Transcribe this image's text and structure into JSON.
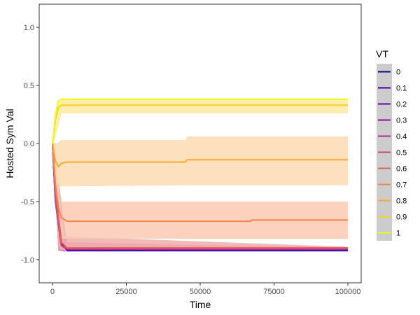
{
  "chart_data": {
    "type": "line",
    "title": "",
    "xlabel": "Time",
    "ylabel": "Hosted Sym Val",
    "xlim": [
      -4500,
      104500
    ],
    "ylim": [
      -1.2,
      1.2
    ],
    "x_ticks": [
      0,
      25000,
      50000,
      75000,
      100000
    ],
    "x_tick_labels": [
      "0",
      "25000",
      "50000",
      "75000",
      "100000"
    ],
    "y_ticks": [
      -1.0,
      -0.5,
      0.0,
      0.5,
      1.0
    ],
    "y_tick_labels": [
      "-1.0",
      "-0.5",
      "0.0",
      "0.5",
      "1.0"
    ],
    "grid": false,
    "legend": {
      "title": "VT",
      "placement": "right"
    },
    "series": [
      {
        "name": "0",
        "color": "#0d0887",
        "band_fill": "#7f7fd0",
        "points": [
          [
            0,
            0.0
          ],
          [
            1000,
            -0.4
          ],
          [
            3000,
            -0.85
          ],
          [
            5000,
            -0.92
          ],
          [
            100000,
            -0.92
          ]
        ],
        "band": [
          [
            0,
            -0.02,
            0.02
          ],
          [
            2000,
            -0.9,
            -0.3
          ],
          [
            5000,
            -0.93,
            -0.88
          ],
          [
            100000,
            -0.93,
            -0.91
          ]
        ]
      },
      {
        "name": "0.1",
        "color": "#41049d",
        "band_fill": "#8b6fd0",
        "points": [
          [
            0,
            0.0
          ],
          [
            1000,
            -0.45
          ],
          [
            3000,
            -0.86
          ],
          [
            5000,
            -0.92
          ],
          [
            100000,
            -0.92
          ]
        ],
        "band": [
          [
            0,
            -0.02,
            0.02
          ],
          [
            2000,
            -0.9,
            -0.35
          ],
          [
            5000,
            -0.93,
            -0.88
          ],
          [
            100000,
            -0.93,
            -0.91
          ]
        ]
      },
      {
        "name": "0.2",
        "color": "#6a00a8",
        "band_fill": "#a36fd6",
        "points": [
          [
            0,
            0.0
          ],
          [
            1000,
            -0.5
          ],
          [
            3000,
            -0.87
          ],
          [
            5000,
            -0.91
          ],
          [
            100000,
            -0.91
          ]
        ],
        "band": [
          [
            0,
            -0.02,
            0.02
          ],
          [
            2000,
            -0.92,
            -0.4
          ],
          [
            4000,
            -0.93,
            -0.84
          ],
          [
            5500,
            -0.92,
            -0.9
          ],
          [
            100000,
            -0.92,
            -0.9
          ]
        ]
      },
      {
        "name": "0.3",
        "color": "#8f0da4",
        "band_fill": "#c76fd0",
        "points": [
          [
            0,
            0.0
          ],
          [
            1000,
            -0.5
          ],
          [
            3000,
            -0.88
          ],
          [
            5000,
            -0.91
          ],
          [
            100000,
            -0.91
          ]
        ],
        "band": [
          [
            0,
            -0.02,
            0.02
          ],
          [
            2000,
            -0.92,
            -0.45
          ],
          [
            4000,
            -0.93,
            -0.85
          ],
          [
            100000,
            -0.92,
            -0.9
          ]
        ]
      },
      {
        "name": "0.4",
        "color": "#b12a90",
        "band_fill": "#d88bc2",
        "points": [
          [
            0,
            0.0
          ],
          [
            1000,
            -0.5
          ],
          [
            3000,
            -0.88
          ],
          [
            5000,
            -0.91
          ],
          [
            100000,
            -0.91
          ]
        ],
        "band": [
          [
            0,
            -0.02,
            0.02
          ],
          [
            2000,
            -0.92,
            -0.45
          ],
          [
            4000,
            -0.92,
            -0.86
          ],
          [
            100000,
            -0.92,
            -0.9
          ]
        ]
      },
      {
        "name": "0.5",
        "color": "#cc4778",
        "band_fill": "#e59bb3",
        "points": [
          [
            0,
            0.0
          ],
          [
            1000,
            -0.5
          ],
          [
            3000,
            -0.88
          ],
          [
            5000,
            -0.9
          ],
          [
            100000,
            -0.9
          ]
        ],
        "band": [
          [
            0,
            -0.02,
            0.02
          ],
          [
            2000,
            -0.92,
            -0.45
          ],
          [
            4000,
            -0.92,
            -0.86
          ],
          [
            100000,
            -0.91,
            -0.89
          ]
        ]
      },
      {
        "name": "0.6",
        "color": "#e16462",
        "band_fill": "#f0aea9",
        "points": [
          [
            0,
            0.0
          ],
          [
            1000,
            -0.4
          ],
          [
            3000,
            -0.85
          ],
          [
            5000,
            -0.9
          ],
          [
            100000,
            -0.9
          ]
        ],
        "band": [
          [
            0,
            -0.02,
            0.02
          ],
          [
            2000,
            -0.9,
            -0.35
          ],
          [
            4000,
            -0.92,
            -0.8
          ],
          [
            100000,
            -0.91,
            -0.89
          ]
        ]
      },
      {
        "name": "0.7",
        "color": "#f2844b",
        "band_fill": "#f9cab1",
        "points": [
          [
            0,
            0.0
          ],
          [
            1000,
            -0.35
          ],
          [
            2000,
            -0.55
          ],
          [
            3000,
            -0.64
          ],
          [
            5000,
            -0.67
          ],
          [
            67000,
            -0.67
          ],
          [
            67500,
            -0.66
          ],
          [
            100000,
            -0.66
          ]
        ],
        "band": [
          [
            0,
            -0.02,
            0.02
          ],
          [
            1500,
            -0.6,
            -0.2
          ],
          [
            3000,
            -0.82,
            -0.5
          ],
          [
            5000,
            -0.82,
            -0.5
          ],
          [
            45000,
            -0.82,
            -0.5
          ],
          [
            67000,
            -0.82,
            -0.5
          ],
          [
            100000,
            -0.82,
            -0.5
          ]
        ]
      },
      {
        "name": "0.8",
        "color": "#fca636",
        "band_fill": "#fddcb0",
        "points": [
          [
            0,
            0.0
          ],
          [
            1000,
            -0.15
          ],
          [
            2000,
            -0.2
          ],
          [
            3000,
            -0.17
          ],
          [
            5000,
            -0.16
          ],
          [
            45000,
            -0.16
          ],
          [
            45500,
            -0.14
          ],
          [
            100000,
            -0.14
          ]
        ],
        "band": [
          [
            0,
            -0.02,
            0.02
          ],
          [
            1500,
            -0.35,
            0.0
          ],
          [
            3000,
            -0.37,
            0.03
          ],
          [
            45000,
            -0.36,
            0.03
          ],
          [
            45500,
            -0.36,
            0.06
          ],
          [
            100000,
            -0.36,
            0.06
          ]
        ]
      },
      {
        "name": "0.9",
        "color": "#fccd25",
        "band_fill": "#fdeaa0",
        "points": [
          [
            0,
            0.0
          ],
          [
            1000,
            0.2
          ],
          [
            2000,
            0.31
          ],
          [
            3000,
            0.33
          ],
          [
            100000,
            0.33
          ]
        ],
        "band": [
          [
            0,
            -0.02,
            0.02
          ],
          [
            1500,
            0.1,
            0.35
          ],
          [
            3000,
            0.26,
            0.38
          ],
          [
            100000,
            0.26,
            0.38
          ]
        ]
      },
      {
        "name": "1",
        "color": "#f0f921",
        "band_fill": "#fbfd9a",
        "points": [
          [
            0,
            0.0
          ],
          [
            1000,
            0.25
          ],
          [
            2000,
            0.36
          ],
          [
            3000,
            0.38
          ],
          [
            100000,
            0.38
          ]
        ],
        "band": [
          [
            0,
            -0.02,
            0.02
          ],
          [
            1500,
            0.2,
            0.37
          ],
          [
            3000,
            0.37,
            0.39
          ],
          [
            100000,
            0.37,
            0.39
          ]
        ]
      }
    ]
  }
}
